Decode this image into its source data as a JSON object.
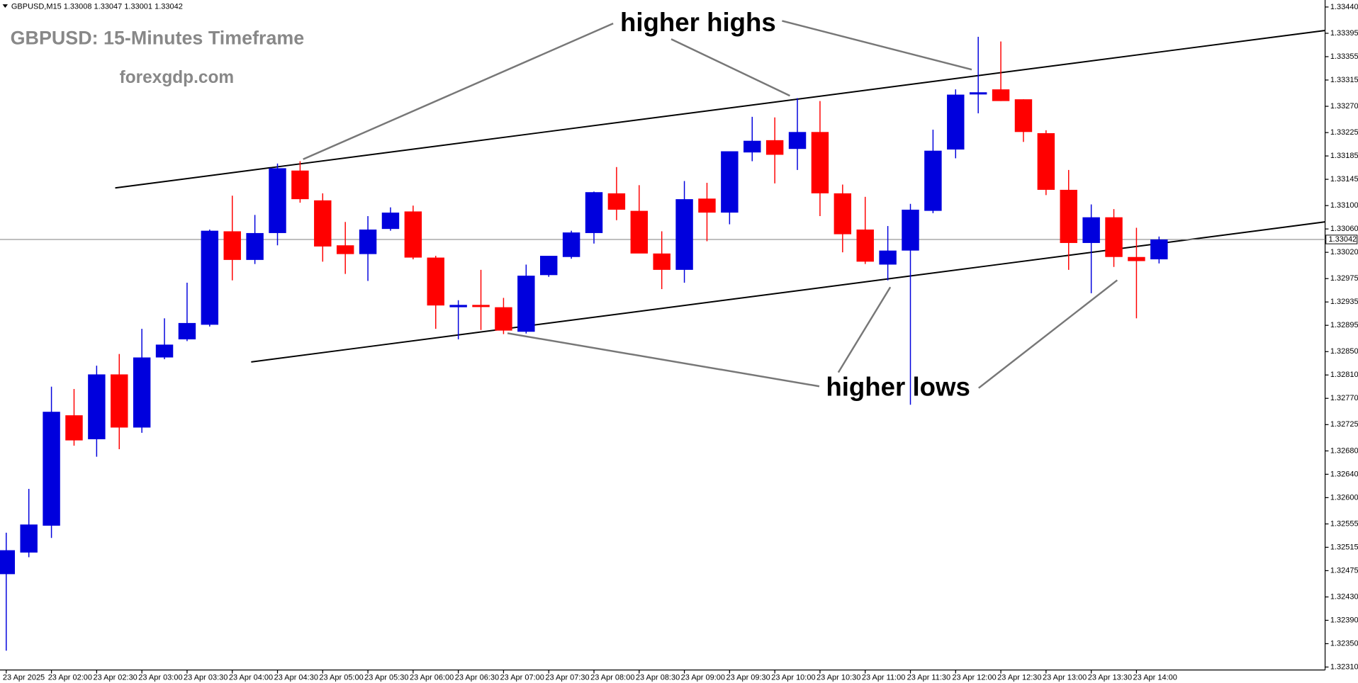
{
  "chart_data": {
    "type": "candlestick",
    "header": "GBPUSD,M15  1.33008 1.33047 1.33001 1.33042",
    "title": "GBPUSD: 15-Minutes Timeframe",
    "subtitle": "forexgdp.com",
    "annotations": [
      "higher highs",
      "higher lows"
    ],
    "up_color": "#0000dd",
    "down_color": "#ff0000",
    "grid": false,
    "current_price": 1.33042,
    "ylim": [
      1.32305,
      1.33452
    ],
    "yticks": [
      {
        "value": 1.3344,
        "label": "1.33440"
      },
      1.33395,
      1.33355,
      1.33315,
      {
        "value": 1.3327,
        "label": "1.33270"
      },
      1.33225,
      1.33185,
      1.33145,
      {
        "value": 1.331,
        "label": "1.33100"
      },
      {
        "value": 1.3306,
        "label": "1.33060"
      },
      {
        "value": 1.3302,
        "label": "1.33020"
      },
      1.32975,
      1.32935,
      1.32895,
      {
        "value": 1.3285,
        "label": "1.32850"
      },
      {
        "value": 1.3281,
        "label": "1.32810"
      },
      {
        "value": 1.3277,
        "label": "1.32770"
      },
      1.32725,
      {
        "value": 1.3268,
        "label": "1.32680"
      },
      {
        "value": 1.3264,
        "label": "1.32640"
      },
      {
        "value": 1.326,
        "label": "1.32600"
      },
      1.32555,
      1.32515,
      1.32475,
      {
        "value": 1.3243,
        "label": "1.32430"
      },
      {
        "value": 1.3239,
        "label": "1.32390"
      },
      {
        "value": 1.3235,
        "label": "1.32350"
      },
      {
        "value": 1.3231,
        "label": "1.32310"
      }
    ],
    "categories": [
      "23 Apr 2025",
      null,
      "23 Apr 02:00",
      null,
      "23 Apr 02:30",
      null,
      "23 Apr 03:00",
      null,
      "23 Apr 03:30",
      null,
      "23 Apr 04:00",
      null,
      "23 Apr 04:30",
      null,
      "23 Apr 05:00",
      null,
      "23 Apr 05:30",
      null,
      "23 Apr 06:00",
      null,
      "23 Apr 06:30",
      null,
      "23 Apr 07:00",
      null,
      "23 Apr 07:30",
      null,
      "23 Apr 08:00",
      null,
      "23 Apr 08:30",
      null,
      "23 Apr 09:00",
      null,
      "23 Apr 09:30",
      null,
      "23 Apr 10:00",
      null,
      "23 Apr 10:30",
      null,
      "23 Apr 11:00",
      null,
      "23 Apr 11:30",
      null,
      "23 Apr 12:00",
      null,
      "23 Apr 12:30",
      null,
      "23 Apr 13:00",
      null,
      "23 Apr 13:30",
      null,
      "23 Apr 14:00",
      null
    ],
    "open": [
      1.32469,
      1.32506,
      1.32552,
      1.32741,
      1.327,
      1.32811,
      1.3272,
      1.3284,
      1.32871,
      1.32896,
      1.33056,
      1.33007,
      1.33053,
      1.3316,
      1.33109,
      1.33032,
      1.33017,
      1.3306,
      1.3309,
      1.33011,
      1.32926,
      1.3293,
      1.32926,
      1.32884,
      1.32981,
      1.33012,
      1.33053,
      1.33121,
      1.33091,
      1.33018,
      1.3299,
      1.33112,
      1.33088,
      1.33191,
      1.33212,
      1.33197,
      1.33226,
      1.33121,
      1.33059,
      1.32999,
      1.33023,
      1.33091,
      1.33196,
      1.33291,
      1.33299,
      1.33282,
      1.33224,
      1.33127,
      1.33036,
      1.3308,
      1.33012,
      1.33008
    ],
    "high": [
      1.3254,
      1.32615,
      1.3279,
      1.32786,
      1.32826,
      1.32846,
      1.32889,
      1.32907,
      1.32968,
      1.33059,
      1.33117,
      1.33084,
      1.33172,
      1.33176,
      1.33121,
      1.33072,
      1.33082,
      1.33097,
      1.331,
      1.33014,
      1.32938,
      1.3299,
      1.32942,
      1.32999,
      1.33012,
      1.33057,
      1.33124,
      1.33166,
      1.33135,
      1.33056,
      1.33142,
      1.33139,
      1.33187,
      1.33252,
      1.33251,
      1.33284,
      1.33279,
      1.33136,
      1.33115,
      1.33065,
      1.33103,
      1.3323,
      1.33299,
      1.33389,
      1.33381,
      1.33282,
      1.33229,
      1.33161,
      1.33102,
      1.33094,
      1.33062,
      1.33047
    ],
    "low": [
      1.32338,
      1.32498,
      1.32531,
      1.32689,
      1.3267,
      1.32683,
      1.32711,
      1.32837,
      1.32868,
      1.32893,
      1.32972,
      1.33,
      1.33032,
      1.33105,
      1.33004,
      1.32983,
      1.32971,
      1.33057,
      1.33008,
      1.32889,
      1.32871,
      1.32887,
      1.3288,
      1.32881,
      1.32978,
      1.33009,
      1.33035,
      1.33075,
      1.3302,
      1.32957,
      1.32968,
      1.33039,
      1.33068,
      1.33176,
      1.33138,
      1.33161,
      1.33082,
      1.3302,
      1.33,
      1.32972,
      1.32759,
      1.33087,
      1.33181,
      1.33258,
      1.33279,
      1.33209,
      1.33118,
      1.3299,
      1.3295,
      1.32995,
      1.32907,
      1.33001
    ],
    "close": [
      1.3251,
      1.32554,
      1.32747,
      1.32698,
      1.32811,
      1.3272,
      1.3284,
      1.32862,
      1.32899,
      1.33057,
      1.33007,
      1.33053,
      1.33164,
      1.33111,
      1.3303,
      1.33017,
      1.33059,
      1.33088,
      1.33011,
      1.32929,
      1.3293,
      1.32929,
      1.32886,
      1.3298,
      1.33014,
      1.33054,
      1.33123,
      1.33093,
      1.33018,
      1.3299,
      1.33111,
      1.33088,
      1.33193,
      1.33211,
      1.33187,
      1.33226,
      1.33121,
      1.33051,
      1.33004,
      1.33023,
      1.33093,
      1.33194,
      1.3329,
      1.33294,
      1.33279,
      1.33226,
      1.33127,
      1.33036,
      1.3308,
      1.33012,
      1.33005,
      1.33042
    ]
  }
}
